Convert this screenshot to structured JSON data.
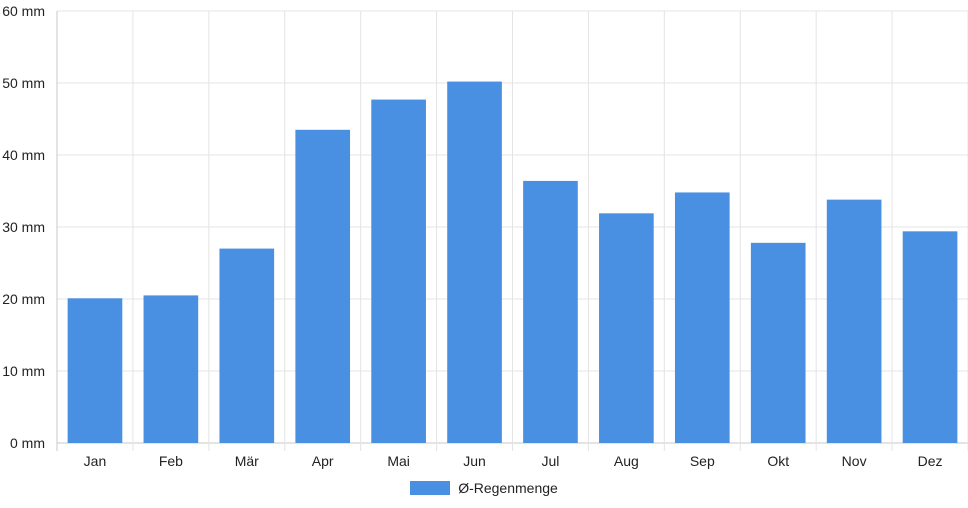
{
  "chart_data": {
    "type": "bar",
    "categories": [
      "Jan",
      "Feb",
      "Mär",
      "Apr",
      "Mai",
      "Jun",
      "Jul",
      "Aug",
      "Sep",
      "Okt",
      "Nov",
      "Dez"
    ],
    "series": [
      {
        "name": "Ø-Regenmenge",
        "values": [
          20.1,
          20.5,
          27.0,
          43.5,
          47.7,
          50.2,
          36.4,
          31.9,
          34.8,
          27.8,
          33.8,
          29.4
        ],
        "color": "#4a90e2"
      }
    ],
    "y_ticks": [
      "0 mm",
      "10 mm",
      "20 mm",
      "30 mm",
      "40 mm",
      "50 mm",
      "60 mm"
    ],
    "ylim": [
      0,
      60
    ],
    "grid": true,
    "legend_position": "bottom"
  }
}
